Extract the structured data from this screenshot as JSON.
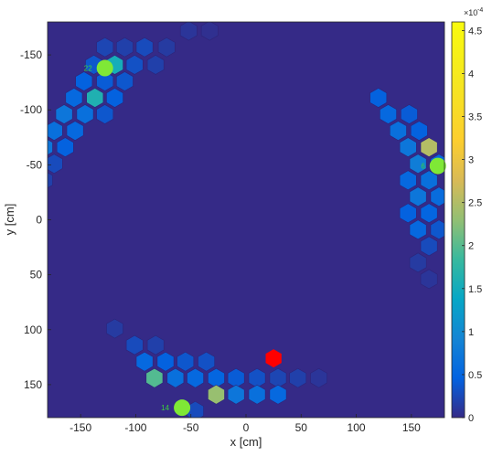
{
  "chart_data": {
    "type": "heatmap",
    "title": "",
    "xlabel": "x [cm]",
    "ylabel": "y [cm]",
    "xlim": [
      -180,
      180
    ],
    "ylim": [
      -180,
      180
    ],
    "y_axis_direction": "reversed",
    "x_ticks": [
      "-150",
      "-100",
      "-50",
      "0",
      "50",
      "100",
      "150"
    ],
    "y_ticks": [
      "-150",
      "-100",
      "-50",
      "0",
      "50",
      "100",
      "150"
    ],
    "colorbar": {
      "min": 0,
      "max": 4.6,
      "multiplier": "×10",
      "exponent": "-4",
      "ticks": [
        "0",
        "0.5",
        "1",
        "1.5",
        "2",
        "2.5",
        "3",
        "3.5",
        "4",
        "4.5"
      ],
      "colormap": "parula"
    },
    "background_value": 0,
    "hexagons": [
      {
        "x": -52,
        "y": -172,
        "v": 0.1
      },
      {
        "x": -33,
        "y": -172,
        "v": 0.05
      },
      {
        "x": -128,
        "y": -157,
        "v": 0.25
      },
      {
        "x": -110,
        "y": -157,
        "v": 0.2
      },
      {
        "x": -92,
        "y": -157,
        "v": 0.3
      },
      {
        "x": -72,
        "y": -157,
        "v": 0.15
      },
      {
        "x": -138,
        "y": -141,
        "v": 0.4
      },
      {
        "x": -119,
        "y": -141,
        "v": 1.7
      },
      {
        "x": -101,
        "y": -141,
        "v": 0.35
      },
      {
        "x": -82,
        "y": -141,
        "v": 0.2
      },
      {
        "x": -147,
        "y": -126,
        "v": 0.5
      },
      {
        "x": -128,
        "y": -126,
        "v": 0.45
      },
      {
        "x": -110,
        "y": -126,
        "v": 0.4
      },
      {
        "x": -156,
        "y": -111,
        "v": 0.6
      },
      {
        "x": -137,
        "y": -111,
        "v": 1.8
      },
      {
        "x": -119,
        "y": -111,
        "v": 0.5
      },
      {
        "x": -165,
        "y": -96,
        "v": 0.8
      },
      {
        "x": -146,
        "y": -96,
        "v": 0.7
      },
      {
        "x": -128,
        "y": -96,
        "v": 0.4
      },
      {
        "x": -174,
        "y": -81,
        "v": 0.7
      },
      {
        "x": -155,
        "y": -81,
        "v": 0.6
      },
      {
        "x": -183,
        "y": -66,
        "v": 0.8
      },
      {
        "x": -164,
        "y": -66,
        "v": 0.5
      },
      {
        "x": -174,
        "y": -51,
        "v": 0.3
      },
      {
        "x": -183,
        "y": -36,
        "v": 0.2
      },
      {
        "x": 120,
        "y": -111,
        "v": 0.5
      },
      {
        "x": 129,
        "y": -96,
        "v": 0.6
      },
      {
        "x": 148,
        "y": -96,
        "v": 0.45
      },
      {
        "x": 138,
        "y": -81,
        "v": 0.7
      },
      {
        "x": 157,
        "y": -81,
        "v": 0.5
      },
      {
        "x": 147,
        "y": -66,
        "v": 0.8
      },
      {
        "x": 166,
        "y": -66,
        "v": 2.8
      },
      {
        "x": 156,
        "y": -51,
        "v": 0.9
      },
      {
        "x": 175,
        "y": -51,
        "v": 0.6
      },
      {
        "x": 147,
        "y": -36,
        "v": 0.6
      },
      {
        "x": 166,
        "y": -36,
        "v": 0.7
      },
      {
        "x": 156,
        "y": -21,
        "v": 0.8
      },
      {
        "x": 175,
        "y": -21,
        "v": 0.65
      },
      {
        "x": 147,
        "y": -6,
        "v": 0.5
      },
      {
        "x": 166,
        "y": -6,
        "v": 0.55
      },
      {
        "x": 156,
        "y": 9,
        "v": 0.6
      },
      {
        "x": 175,
        "y": 9,
        "v": 0.4
      },
      {
        "x": 166,
        "y": 24,
        "v": 0.3
      },
      {
        "x": 156,
        "y": 39,
        "v": 0.15
      },
      {
        "x": 166,
        "y": 54,
        "v": 0.1
      },
      {
        "x": -119,
        "y": 99,
        "v": 0.15
      },
      {
        "x": -101,
        "y": 114,
        "v": 0.3
      },
      {
        "x": -82,
        "y": 114,
        "v": 0.2
      },
      {
        "x": -92,
        "y": 129,
        "v": 0.6
      },
      {
        "x": -73,
        "y": 129,
        "v": 0.5
      },
      {
        "x": -55,
        "y": 129,
        "v": 0.4
      },
      {
        "x": -36,
        "y": 129,
        "v": 0.35
      },
      {
        "x": -83,
        "y": 144,
        "v": 2.2
      },
      {
        "x": -64,
        "y": 144,
        "v": 0.7
      },
      {
        "x": -46,
        "y": 144,
        "v": 0.6
      },
      {
        "x": -27,
        "y": 144,
        "v": 0.55
      },
      {
        "x": -9,
        "y": 144,
        "v": 0.45
      },
      {
        "x": 10,
        "y": 144,
        "v": 0.35
      },
      {
        "x": 29,
        "y": 144,
        "v": 0.25
      },
      {
        "x": 47,
        "y": 144,
        "v": 0.2
      },
      {
        "x": 66,
        "y": 144,
        "v": 0.1
      },
      {
        "x": -27,
        "y": 159,
        "v": 2.6
      },
      {
        "x": -9,
        "y": 159,
        "v": 0.8
      },
      {
        "x": 10,
        "y": 159,
        "v": 0.7
      },
      {
        "x": 29,
        "y": 159,
        "v": 0.6
      },
      {
        "x": -46,
        "y": 174,
        "v": 0.3
      }
    ],
    "source_markers": [
      {
        "x": 25,
        "y": 126,
        "shape": "hexagon",
        "color": "#ff0000"
      }
    ],
    "detector_markers": [
      {
        "label": "22",
        "x": -128,
        "y": -138,
        "color": "#7fe836"
      },
      {
        "label": "6",
        "x": 174,
        "y": -49,
        "color": "#7fe836"
      },
      {
        "label": "14",
        "x": -58,
        "y": 171,
        "color": "#7fe836"
      }
    ]
  }
}
